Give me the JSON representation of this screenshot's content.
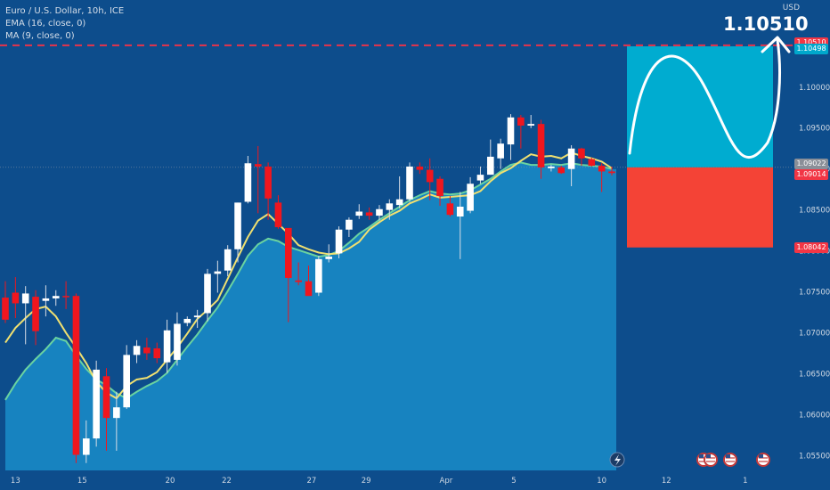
{
  "legend": {
    "symbol": "Euro / U.S. Dollar, 10h, ICE",
    "ema": "EMA (16, close, 0)",
    "ma": "MA (9, close, 0)"
  },
  "axis_unit": "USD",
  "target_label": "1.10510",
  "price_tags": [
    {
      "text": "1.10510",
      "color": "#f23645",
      "value": 1.1051
    },
    {
      "text": "1.10498",
      "color": "#00a8cc",
      "value": 1.10498
    },
    {
      "text": "1.09022",
      "color": "#8a8f98",
      "value": 1.09022
    },
    {
      "text": "1.09014",
      "color": "#f23645",
      "value": 1.09014
    },
    {
      "text": "1.08042",
      "color": "#f23645",
      "value": 1.08042
    }
  ],
  "colors": {
    "background": "#0d4d8c",
    "up": "#ffffff",
    "down": "#f0161e",
    "ema": "#6ad3a0",
    "ma": "#f0e070",
    "area": "#1783c0",
    "target": "#00acd0",
    "stop": "#f44336",
    "dash": "#e8334a"
  },
  "chart_data": {
    "type": "candlestick",
    "y_ticks": [
      "1.10000",
      "1.09500",
      "1.09000",
      "1.08500",
      "1.08000",
      "1.07500",
      "1.07000",
      "1.06500",
      "1.06000",
      "1.05500"
    ],
    "y_tick_values": [
      1.1,
      1.095,
      1.09,
      1.085,
      1.08,
      1.075,
      1.07,
      1.065,
      1.06,
      1.055
    ],
    "ylim": [
      1.0532,
      1.1102
    ],
    "x_ticks": [
      "13",
      "15",
      "20",
      "22",
      "27",
      "29",
      "Apr",
      "5",
      "10",
      "12",
      "1"
    ],
    "x_tick_index": [
      1,
      7.6,
      16.3,
      21.9,
      30.3,
      35.7,
      43.6,
      50.3,
      59,
      65.4,
      73.2
    ],
    "candles": [
      [
        1.0743,
        1.0763,
        1.0712,
        1.0716
      ],
      [
        1.0749,
        1.0768,
        1.0718,
        1.0736
      ],
      [
        1.0736,
        1.0757,
        1.0686,
        1.0748
      ],
      [
        1.0744,
        1.0752,
        1.0685,
        1.0702
      ],
      [
        1.0739,
        1.0758,
        1.072,
        1.0742
      ],
      [
        1.0742,
        1.0752,
        1.0733,
        1.0745
      ],
      [
        1.0745,
        1.0763,
        1.0729,
        1.0744
      ],
      [
        1.0745,
        1.0748,
        1.0541,
        1.0551
      ],
      [
        1.0551,
        1.0593,
        1.0541,
        1.0571
      ],
      [
        1.0571,
        1.0666,
        1.0561,
        1.0655
      ],
      [
        1.0647,
        1.0657,
        1.0556,
        1.0596
      ],
      [
        1.0596,
        1.0628,
        1.0556,
        1.0609
      ],
      [
        1.0609,
        1.0685,
        1.0607,
        1.0673
      ],
      [
        1.0673,
        1.0691,
        1.0663,
        1.0684
      ],
      [
        1.0682,
        1.0694,
        1.0667,
        1.0675
      ],
      [
        1.0681,
        1.0688,
        1.0663,
        1.0669
      ],
      [
        1.0664,
        1.0716,
        1.0651,
        1.0703
      ],
      [
        1.0667,
        1.0725,
        1.066,
        1.0711
      ],
      [
        1.0712,
        1.072,
        1.0708,
        1.0717
      ],
      [
        1.0719,
        1.0728,
        1.0706,
        1.0721
      ],
      [
        1.0724,
        1.0778,
        1.0714,
        1.0772
      ],
      [
        1.0772,
        1.0788,
        1.0749,
        1.0775
      ],
      [
        1.0776,
        1.0807,
        1.0769,
        1.0802
      ],
      [
        1.0802,
        1.0859,
        1.0786,
        1.0859
      ],
      [
        1.086,
        1.0916,
        1.0858,
        1.0907
      ],
      [
        1.0906,
        1.0928,
        1.0846,
        1.0903
      ],
      [
        1.0903,
        1.0908,
        1.0838,
        1.0864
      ],
      [
        1.0859,
        1.0868,
        1.0827,
        1.0829
      ],
      [
        1.0828,
        1.0827,
        1.0713,
        1.0767
      ],
      [
        1.0764,
        1.0786,
        1.0758,
        1.0762
      ],
      [
        1.0763,
        1.0782,
        1.0749,
        1.0745
      ],
      [
        1.0749,
        1.0794,
        1.0745,
        1.079
      ],
      [
        1.079,
        1.0808,
        1.0786,
        1.0793
      ],
      [
        1.0797,
        1.083,
        1.0791,
        1.0826
      ],
      [
        1.0826,
        1.0841,
        1.0817,
        1.0838
      ],
      [
        1.0843,
        1.0857,
        1.0839,
        1.0848
      ],
      [
        1.0847,
        1.0853,
        1.0838,
        1.0843
      ],
      [
        1.0843,
        1.0856,
        1.0837,
        1.0851
      ],
      [
        1.085,
        1.0863,
        1.0838,
        1.0858
      ],
      [
        1.0856,
        1.0891,
        1.0852,
        1.0863
      ],
      [
        1.0863,
        1.0908,
        1.086,
        1.0903
      ],
      [
        1.0903,
        1.0908,
        1.0894,
        1.0899
      ],
      [
        1.0899,
        1.0913,
        1.0862,
        1.0884
      ],
      [
        1.0888,
        1.0891,
        1.0855,
        1.0867
      ],
      [
        1.0858,
        1.0867,
        1.0842,
        1.0844
      ],
      [
        1.0842,
        1.0872,
        1.079,
        1.0854
      ],
      [
        1.0849,
        1.089,
        1.0846,
        1.0882
      ],
      [
        1.0886,
        1.0903,
        1.0882,
        1.0893
      ],
      [
        1.0893,
        1.0936,
        1.0893,
        1.0915
      ],
      [
        1.0913,
        1.0937,
        1.09,
        1.0931
      ],
      [
        1.093,
        1.0967,
        1.0911,
        1.0963
      ],
      [
        1.0963,
        1.0966,
        1.0925,
        1.0953
      ],
      [
        1.0953,
        1.0966,
        1.095,
        1.0955
      ],
      [
        1.0955,
        1.096,
        1.0888,
        1.0902
      ],
      [
        1.0901,
        1.0905,
        1.0897,
        1.0903
      ],
      [
        1.0902,
        1.0904,
        1.0894,
        1.0895
      ],
      [
        1.09,
        1.0929,
        1.0879,
        1.0925
      ],
      [
        1.0925,
        1.0926,
        1.0904,
        1.0913
      ],
      [
        1.0912,
        1.0914,
        1.0903,
        1.0904
      ],
      [
        1.0904,
        1.0907,
        1.0872,
        1.0897
      ],
      [
        1.0897,
        1.0903,
        1.0892,
        1.0895
      ]
    ],
    "ma9": [
      1.0688,
      1.0706,
      1.0718,
      1.0729,
      1.0732,
      1.072,
      1.07,
      1.0682,
      1.0663,
      1.064,
      1.0627,
      1.062,
      1.0635,
      1.0643,
      1.0645,
      1.0652,
      1.0667,
      1.0682,
      1.0699,
      1.0717,
      1.0728,
      1.074,
      1.0766,
      1.0792,
      1.0817,
      1.0837,
      1.0845,
      1.0833,
      1.0821,
      1.0807,
      1.0802,
      1.0798,
      1.0796,
      1.0797,
      1.0803,
      1.0811,
      1.0826,
      1.0835,
      1.0843,
      1.0849,
      1.0858,
      1.0863,
      1.0869,
      1.0865,
      1.0866,
      1.0867,
      1.0868,
      1.0873,
      1.0885,
      1.0895,
      1.0901,
      1.091,
      1.0918,
      1.0915,
      1.0916,
      1.0913,
      1.092,
      1.0916,
      1.0913,
      1.0909,
      1.0901
    ],
    "ema16": [
      1.0618,
      1.0638,
      1.0655,
      1.0668,
      1.068,
      1.0694,
      1.069,
      1.0672,
      1.0656,
      1.0643,
      1.0636,
      1.0626,
      1.062,
      1.0628,
      1.0635,
      1.0641,
      1.0651,
      1.0667,
      1.0683,
      1.0698,
      1.0715,
      1.0731,
      1.0751,
      1.0772,
      1.0794,
      1.0808,
      1.0815,
      1.0812,
      1.0805,
      1.0801,
      1.0797,
      1.0793,
      1.0795,
      1.08,
      1.081,
      1.0821,
      1.0829,
      1.0838,
      1.0846,
      1.0854,
      1.0862,
      1.0868,
      1.0873,
      1.087,
      1.0869,
      1.087,
      1.0874,
      1.0881,
      1.0888,
      1.0897,
      1.0905,
      1.0908,
      1.0905,
      1.0905,
      1.0906,
      1.0905,
      1.0907,
      1.0905,
      1.0904,
      1.0903,
      1.09
    ],
    "levels": {
      "entry": 1.0902,
      "target": 1.10498,
      "stop": 1.08042,
      "dashed": 1.1051
    }
  }
}
